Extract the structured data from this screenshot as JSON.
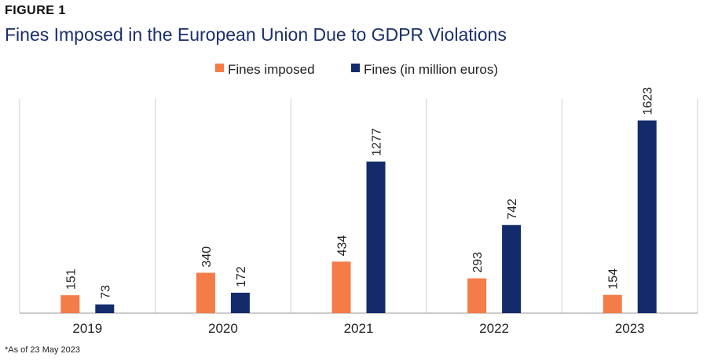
{
  "figure_label": "FIGURE 1",
  "footnote": "*As of 23 May 2023",
  "colors": {
    "fines_imposed": "#f47c48",
    "fines_million": "#142b6b",
    "gridline": "#cfcfcf",
    "axis": "#9a9a9a"
  },
  "chart_data": {
    "type": "bar",
    "title": "Fines Imposed in the European Union Due to GDPR Violations",
    "xlabel": "",
    "ylabel": "",
    "categories": [
      "2019",
      "2020",
      "2021",
      "2022",
      "2023"
    ],
    "series": [
      {
        "name": "Fines imposed",
        "values": [
          151,
          340,
          434,
          293,
          154
        ]
      },
      {
        "name": "Fines (in million euros)",
        "values": [
          73,
          172,
          1277,
          742,
          1623
        ]
      }
    ],
    "legend_position": "top-center",
    "grid": "vertical separators between categories"
  }
}
